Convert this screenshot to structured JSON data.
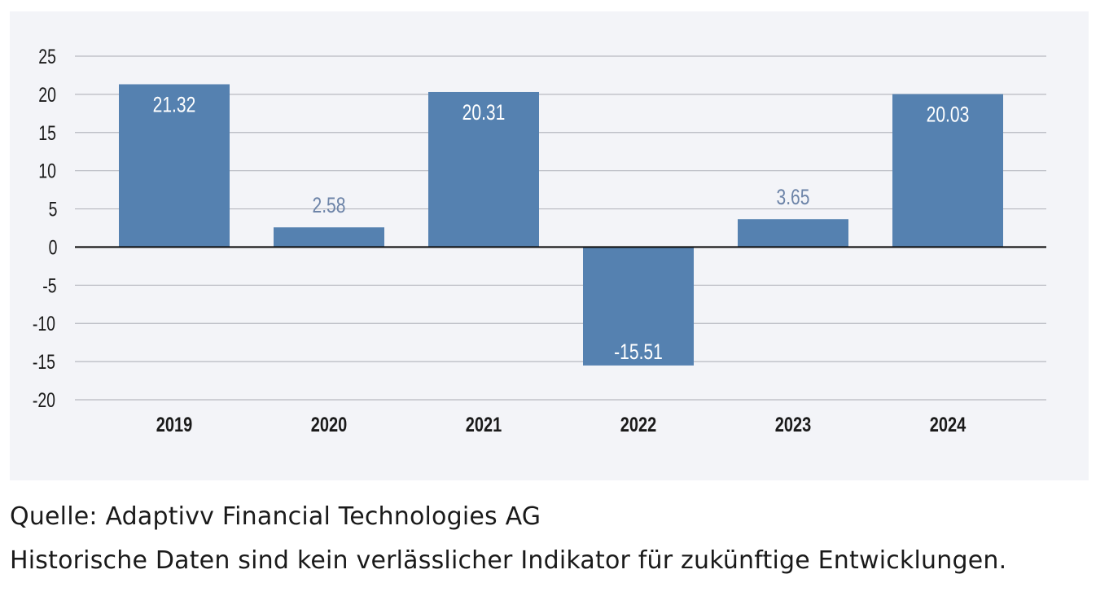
{
  "chart_data": {
    "type": "bar",
    "title": "",
    "xlabel": "",
    "ylabel": "",
    "categories": [
      "2019",
      "2020",
      "2021",
      "2022",
      "2023",
      "2024"
    ],
    "values": [
      21.32,
      2.58,
      20.31,
      -15.51,
      3.65,
      20.03
    ],
    "value_labels": [
      "21.32",
      "2.58",
      "20.31",
      "-15.51",
      "3.65",
      "20.03"
    ],
    "ylim": [
      -20,
      25
    ],
    "yticks": [
      25,
      20,
      15,
      10,
      5,
      0,
      -5,
      -10,
      -15,
      -20
    ],
    "grid": true,
    "legend": "none"
  },
  "colors": {
    "bar": "#5581b0",
    "background": "#f3f4f8",
    "label_inside": "#ffffff",
    "label_outside": "#6d84a8"
  },
  "footer": {
    "source": "Quelle: Adaptivv Financial Technologies AG",
    "disclaimer": "Historische Daten sind kein verlässlicher Indikator für zukünftige Entwicklungen."
  }
}
